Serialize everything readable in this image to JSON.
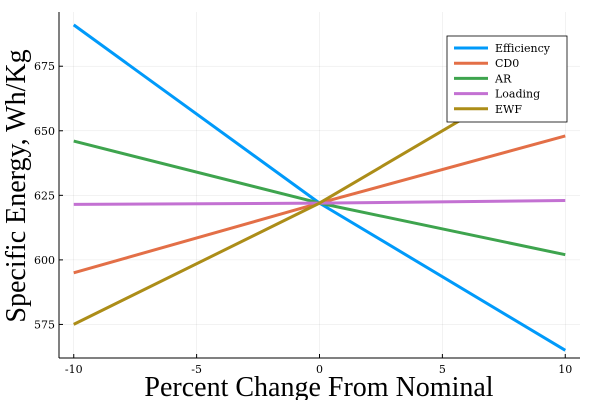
{
  "chart_data": {
    "type": "line",
    "title": "",
    "xlabel": "Percent Change From Nominal",
    "ylabel": "Specific Energy, Wh/Kg",
    "xlim": [
      -10.6,
      10.6
    ],
    "ylim": [
      562,
      696
    ],
    "x_ticks": [
      -10,
      -5,
      0,
      5,
      10
    ],
    "y_ticks": [
      575,
      600,
      625,
      650,
      675
    ],
    "grid": true,
    "legend_position": "top-right",
    "series": [
      {
        "name": "Efficiency",
        "color": "#009AFA",
        "x": [
          -10,
          0,
          10
        ],
        "y": [
          691,
          622,
          565
        ]
      },
      {
        "name": "CD0",
        "color": "#E36F47",
        "x": [
          -10,
          0,
          10
        ],
        "y": [
          595,
          622,
          648
        ]
      },
      {
        "name": "AR",
        "color": "#3EA44E",
        "x": [
          -10,
          0,
          10
        ],
        "y": [
          646,
          622,
          602
        ]
      },
      {
        "name": "Loading",
        "color": "#C371D2",
        "x": [
          -10,
          0,
          10
        ],
        "y": [
          621.5,
          622,
          623
        ]
      },
      {
        "name": "EWF",
        "color": "#AC8D18",
        "x": [
          -10,
          0,
          10
        ],
        "y": [
          575,
          622,
          678
        ]
      }
    ]
  }
}
